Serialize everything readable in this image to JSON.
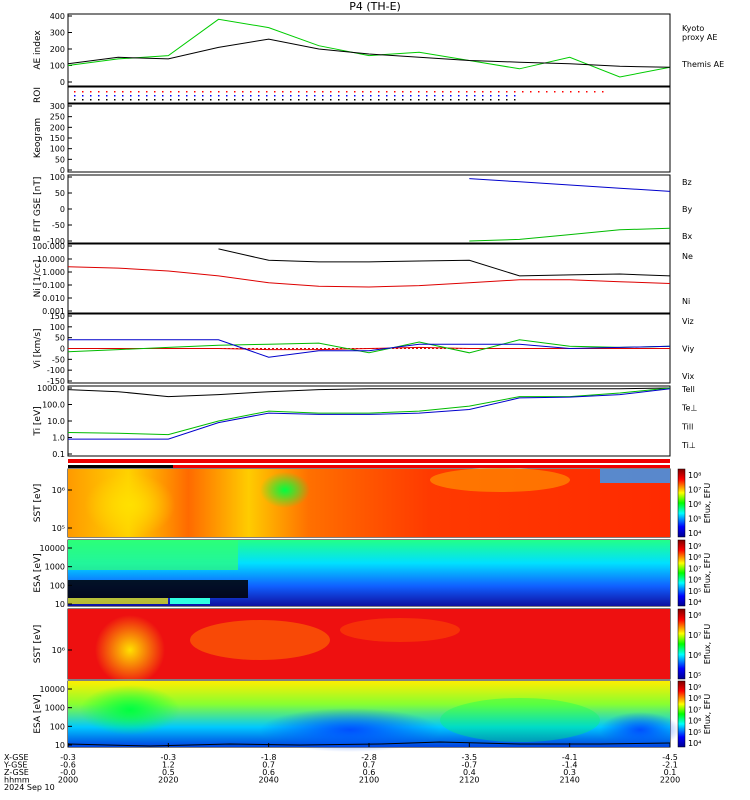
{
  "title": "P4 (TH-E)",
  "x_axis": {
    "tick_labels": [
      "2000",
      "2020",
      "2040",
      "2100",
      "2120",
      "2140",
      "2200"
    ],
    "rows": [
      {
        "label": "X-GSE",
        "values": [
          "-0.3",
          "-0.3",
          "-1.8",
          "-2.8",
          "-3.5",
          "-4.1",
          "-4.5"
        ]
      },
      {
        "label": "Y-GSE",
        "values": [
          "-0.6",
          "1.2",
          "0.7",
          "0.7",
          "-0.7",
          "-1.4",
          "-2.1"
        ]
      },
      {
        "label": "Z-GSE",
        "values": [
          "-0.0",
          "0.5",
          "0.6",
          "0.6",
          "0.4",
          "0.3",
          "0.1"
        ]
      },
      {
        "label": "hhmm",
        "values": [
          "2000",
          "2020",
          "2040",
          "2100",
          "2120",
          "2140",
          "2200"
        ]
      }
    ],
    "date": "2024 Sep 10"
  },
  "panels": {
    "ae": {
      "ylabel": "AE index",
      "ticks": [
        "400",
        "300",
        "200",
        "100",
        "0"
      ],
      "legend": [
        {
          "text": "Kyoto",
          "color": "#00cc00"
        },
        {
          "text": "proxy AE",
          "color": "#00cc00"
        },
        {
          "text": "Themis AE",
          "color": "#000000"
        }
      ]
    },
    "roi": {
      "ylabel": "ROI"
    },
    "keogram": {
      "ylabel": "Keogram",
      "ticks": [
        "300",
        "250",
        "200",
        "150",
        "100",
        "50",
        "0"
      ]
    },
    "bfield": {
      "ylabel": "B FIT GSE [nT]",
      "ticks": [
        "100",
        "50",
        "0",
        "-50",
        "-100"
      ],
      "legend": [
        {
          "text": "Bz",
          "color": "#dd0000"
        },
        {
          "text": "By",
          "color": "#00bb00"
        },
        {
          "text": "Bx",
          "color": "#0000cc"
        }
      ]
    },
    "density": {
      "ylabel": "Ni [1/cc]",
      "ticks": [
        "100.000",
        "10.000",
        "1.000",
        "0.100",
        "0.010",
        "0.001"
      ],
      "legend": [
        {
          "text": "Ne",
          "color": "#dd0000"
        },
        {
          "text": "Ni",
          "color": "#000000"
        }
      ]
    },
    "velocity": {
      "ylabel": "Vi [km/s]",
      "ticks": [
        "150",
        "100",
        "50",
        "0",
        "-50",
        "-100",
        "-150"
      ],
      "legend": [
        {
          "text": "Viz",
          "color": "#dd0000"
        },
        {
          "text": "Viy",
          "color": "#00bb00"
        },
        {
          "text": "Vix",
          "color": "#0000cc"
        }
      ]
    },
    "temperature": {
      "ylabel": "Ti [eV]",
      "ticks": [
        "1000.0",
        "100.0",
        "10.0",
        "1.0",
        "0.1"
      ],
      "legend": [
        {
          "text": "Tell",
          "color": "#000000"
        },
        {
          "text": "Te⊥",
          "color": "#dd0000"
        },
        {
          "text": "Till",
          "color": "#00bb00"
        },
        {
          "text": "Ti⊥",
          "color": "#0000cc"
        }
      ]
    },
    "spec1": {
      "ylabel": "SST [eV]",
      "ticks": [
        "10⁶",
        "10⁵"
      ]
    },
    "spec2": {
      "ylabel": "ESA [eV]",
      "ticks": [
        "10000",
        "1000",
        "100",
        "10"
      ]
    },
    "spec3": {
      "ylabel": "SST [eV]",
      "ticks": [
        "10⁶"
      ]
    },
    "spec4": {
      "ylabel": "ESA [eV]",
      "ticks": [
        "10000",
        "1000",
        "100",
        "10"
      ]
    }
  },
  "colorbars": [
    {
      "label": "Eflux, EFU",
      "ticks": [
        "10⁸",
        "10⁷",
        "10⁶",
        "10⁵",
        "10⁴"
      ]
    },
    {
      "label": "Eflux, EFU",
      "ticks": [
        "10⁹",
        "10⁸",
        "10⁷",
        "10⁶",
        "10⁵",
        "10⁴"
      ]
    },
    {
      "label": "Eflux, EFU",
      "ticks": [
        "10⁸",
        "10⁷",
        "10⁶",
        "10⁵"
      ]
    },
    {
      "label": "Eflux, EFU",
      "ticks": [
        "10⁹",
        "10⁸",
        "10⁷",
        "10⁶",
        "10⁵",
        "10⁴"
      ]
    }
  ],
  "chart_data": [
    {
      "type": "line",
      "title": "P4 (TH-E)",
      "ylabel": "AE index",
      "ylim": [
        0,
        400
      ],
      "xlim": [
        0,
        120
      ],
      "x": [
        0,
        10,
        20,
        30,
        40,
        50,
        60,
        70,
        80,
        90,
        100,
        110,
        120
      ],
      "series": [
        {
          "name": "Kyoto proxy AE",
          "values": [
            100,
            140,
            160,
            380,
            330,
            220,
            160,
            180,
            130,
            80,
            150,
            30,
            90
          ]
        },
        {
          "name": "Themis AE",
          "values": [
            110,
            150,
            140,
            210,
            260,
            200,
            170,
            150,
            130,
            120,
            110,
            95,
            90
          ]
        }
      ]
    },
    {
      "type": "line",
      "ylabel": "B FIT GSE [nT]",
      "ylim": [
        -100,
        100
      ],
      "xlim": [
        0,
        120
      ],
      "x": [
        0,
        10,
        20,
        30,
        40,
        50,
        60,
        70,
        80,
        90,
        100,
        110,
        120
      ],
      "series": [
        {
          "name": "Bz",
          "values": [
            null,
            null,
            null,
            null,
            null,
            null,
            null,
            null,
            null,
            null,
            null,
            null,
            null
          ]
        },
        {
          "name": "By",
          "values": [
            null,
            null,
            null,
            null,
            null,
            null,
            null,
            null,
            -100,
            -95,
            -80,
            -65,
            -60
          ]
        },
        {
          "name": "Bx",
          "values": [
            null,
            null,
            null,
            null,
            null,
            null,
            null,
            null,
            95,
            85,
            75,
            65,
            55
          ]
        }
      ]
    },
    {
      "type": "line",
      "ylabel": "Ni [1/cc]",
      "ylim": [
        0.001,
        100
      ],
      "scale": "log",
      "xlim": [
        0,
        120
      ],
      "x": [
        0,
        10,
        20,
        30,
        40,
        50,
        60,
        70,
        80,
        90,
        100,
        110,
        120
      ],
      "series": [
        {
          "name": "Ne",
          "values": [
            2.5,
            2.0,
            1.2,
            0.5,
            0.15,
            0.08,
            0.07,
            0.09,
            0.15,
            0.25,
            0.25,
            0.18,
            0.13
          ]
        },
        {
          "name": "Ni",
          "values": [
            null,
            null,
            null,
            60,
            8,
            6,
            6,
            7,
            8,
            0.5,
            0.6,
            0.7,
            0.5
          ]
        }
      ]
    },
    {
      "type": "line",
      "ylabel": "Vi [km/s]",
      "ylim": [
        -150,
        150
      ],
      "xlim": [
        0,
        120
      ],
      "x": [
        0,
        10,
        20,
        30,
        40,
        50,
        60,
        70,
        80,
        90,
        100,
        110,
        120
      ],
      "series": [
        {
          "name": "Viz",
          "values": [
            0,
            0,
            0,
            0,
            -5,
            -5,
            0,
            5,
            0,
            0,
            0,
            0,
            0
          ]
        },
        {
          "name": "Viy",
          "values": [
            -15,
            -5,
            5,
            15,
            20,
            25,
            -20,
            30,
            -20,
            40,
            10,
            5,
            10
          ]
        },
        {
          "name": "Vix",
          "values": [
            40,
            40,
            40,
            40,
            -40,
            -10,
            -10,
            20,
            20,
            20,
            0,
            5,
            10
          ]
        }
      ]
    },
    {
      "type": "line",
      "ylabel": "Ti [eV]",
      "ylim": [
        0.1,
        1000
      ],
      "scale": "log",
      "xlim": [
        0,
        120
      ],
      "x": [
        0,
        10,
        20,
        30,
        40,
        50,
        60,
        70,
        80,
        90,
        100,
        110,
        120
      ],
      "series": [
        {
          "name": "Tell",
          "values": [
            800,
            600,
            300,
            400,
            600,
            800,
            900,
            900,
            900,
            900,
            900,
            900,
            1000
          ]
        },
        {
          "name": "Te⊥",
          "values": [
            null,
            null,
            null,
            null,
            null,
            null,
            null,
            null,
            null,
            null,
            null,
            null,
            null
          ]
        },
        {
          "name": "Till",
          "values": [
            2,
            1.8,
            1.5,
            10,
            40,
            30,
            30,
            40,
            80,
            300,
            300,
            500,
            1000
          ]
        },
        {
          "name": "Ti⊥",
          "values": [
            0.8,
            0.8,
            0.8,
            8,
            30,
            25,
            25,
            30,
            50,
            250,
            280,
            400,
            900
          ]
        }
      ]
    }
  ]
}
